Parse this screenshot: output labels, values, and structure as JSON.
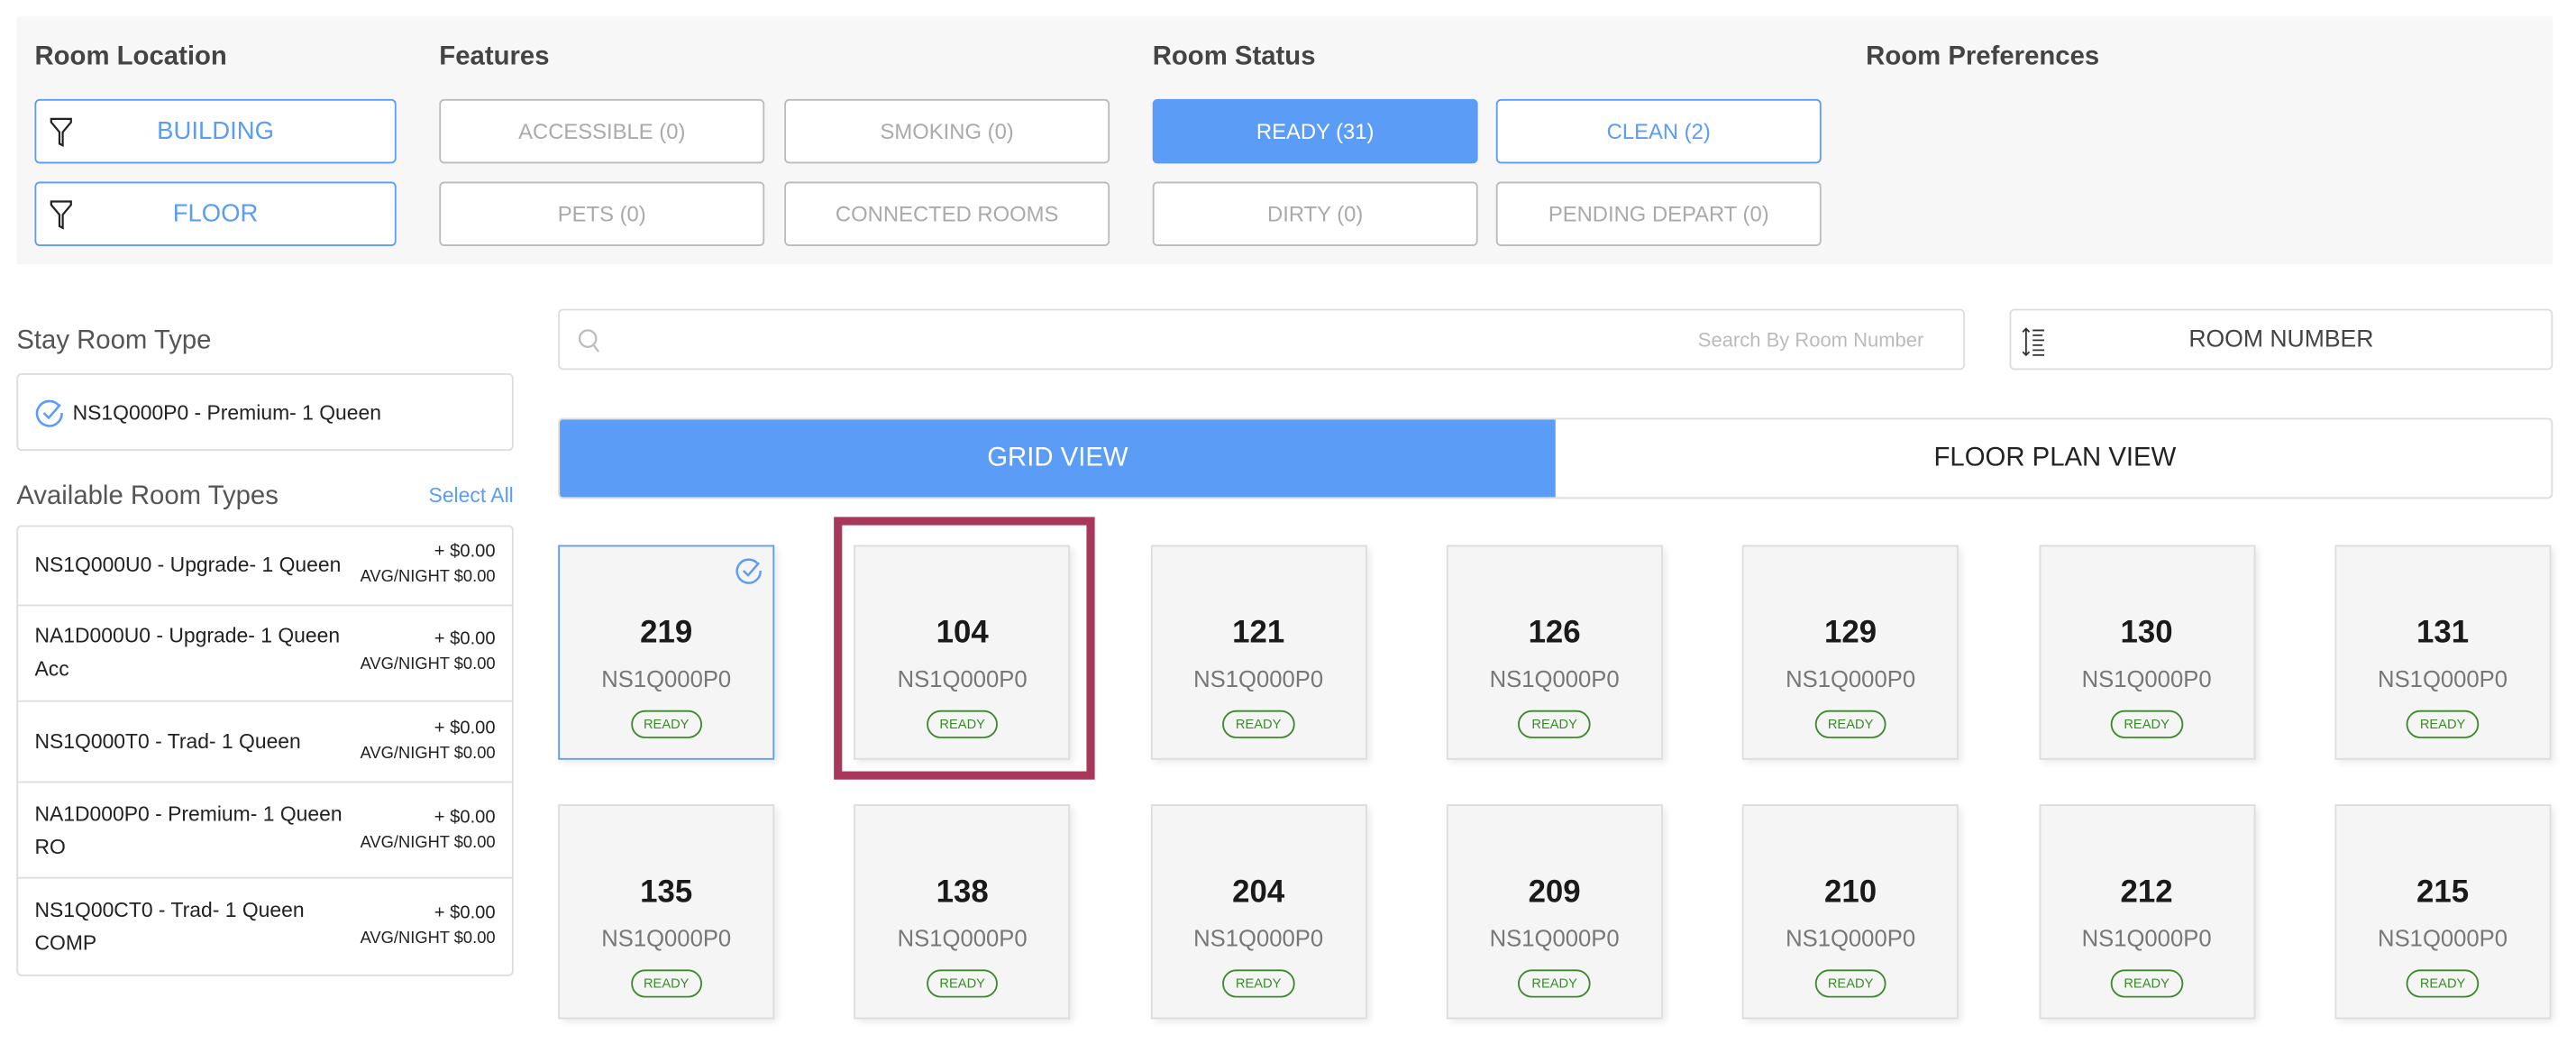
{
  "filters": {
    "room_location": {
      "title": "Room Location",
      "buttons": [
        {
          "label": "BUILDING",
          "icon": "filter-icon"
        },
        {
          "label": "FLOOR",
          "icon": "filter-icon"
        }
      ]
    },
    "features": {
      "title": "Features",
      "buttons": [
        "ACCESSIBLE (0)",
        "SMOKING (0)",
        "PETS (0)",
        "CONNECTED ROOMS"
      ]
    },
    "room_status": {
      "title": "Room Status",
      "buttons": [
        {
          "label": "READY (31)",
          "state": "active"
        },
        {
          "label": "CLEAN (2)",
          "state": "outlined"
        },
        {
          "label": "DIRTY (0)",
          "state": "disabled"
        },
        {
          "label": "PENDING DEPART (0)",
          "state": "disabled"
        }
      ]
    },
    "room_preferences": {
      "title": "Room Preferences"
    }
  },
  "sidebar": {
    "stay_room_type_label": "Stay Room Type",
    "stay_room_type": "NS1Q000P0 - Premium- 1 Queen",
    "available_label": "Available Room Types",
    "select_all": "Select All",
    "room_types": [
      {
        "name": "NS1Q000U0 - Upgrade- 1 Queen",
        "price": "+ $0.00",
        "avg": "AVG/NIGHT $0.00"
      },
      {
        "name": "NA1D000U0 - Upgrade- 1 Queen Acc",
        "price": "+ $0.00",
        "avg": "AVG/NIGHT $0.00"
      },
      {
        "name": "NS1Q000T0 - Trad- 1 Queen",
        "price": "+ $0.00",
        "avg": "AVG/NIGHT $0.00"
      },
      {
        "name": "NA1D000P0 - Premium- 1 Queen RO",
        "price": "+ $0.00",
        "avg": "AVG/NIGHT $0.00"
      },
      {
        "name": "NS1Q00CT0 - Trad- 1 Queen COMP",
        "price": "+ $0.00",
        "avg": "AVG/NIGHT $0.00"
      }
    ]
  },
  "search": {
    "placeholder": "Search By Room Number",
    "value": ""
  },
  "sort": {
    "label": "ROOM NUMBER"
  },
  "tabs": [
    {
      "label": "GRID VIEW",
      "active": true
    },
    {
      "label": "FLOOR PLAN VIEW",
      "active": false
    }
  ],
  "rooms": [
    {
      "number": "219",
      "code": "NS1Q000P0",
      "status": "READY",
      "selected": true
    },
    {
      "number": "104",
      "code": "NS1Q000P0",
      "status": "READY",
      "highlighted": true
    },
    {
      "number": "121",
      "code": "NS1Q000P0",
      "status": "READY"
    },
    {
      "number": "126",
      "code": "NS1Q000P0",
      "status": "READY"
    },
    {
      "number": "129",
      "code": "NS1Q000P0",
      "status": "READY"
    },
    {
      "number": "130",
      "code": "NS1Q000P0",
      "status": "READY"
    },
    {
      "number": "131",
      "code": "NS1Q000P0",
      "status": "READY"
    },
    {
      "number": "135",
      "code": "NS1Q000P0",
      "status": "READY"
    },
    {
      "number": "138",
      "code": "NS1Q000P0",
      "status": "READY"
    },
    {
      "number": "204",
      "code": "NS1Q000P0",
      "status": "READY"
    },
    {
      "number": "209",
      "code": "NS1Q000P0",
      "status": "READY"
    },
    {
      "number": "210",
      "code": "NS1Q000P0",
      "status": "READY"
    },
    {
      "number": "212",
      "code": "NS1Q000P0",
      "status": "READY"
    },
    {
      "number": "215",
      "code": "NS1Q000P0",
      "status": "READY"
    }
  ],
  "colors": {
    "accent": "#5b9cf6",
    "ready": "#3b8a2a",
    "highlight": "#a8385a",
    "panel": "#f7f7f7"
  }
}
